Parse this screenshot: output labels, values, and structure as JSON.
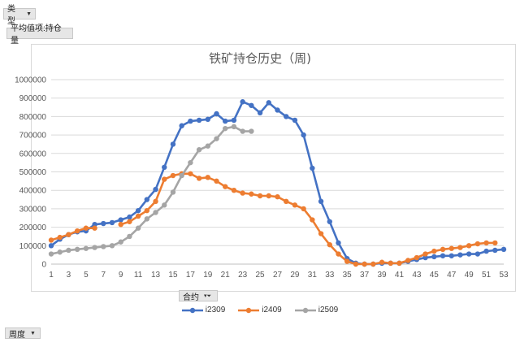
{
  "pivot": {
    "type_filter_label": "类型",
    "value_field_label": "平均值项:持仓量",
    "contract_filter_label": "合约",
    "week_filter_label": "周度"
  },
  "colors": {
    "i2309": "#4472c4",
    "i2409": "#ed7d31",
    "i2509": "#a5a5a5",
    "grid": "#d9d9d9",
    "axis": "#bfbfbf",
    "text": "#595959"
  },
  "chart_data": {
    "type": "line",
    "title": "铁矿持仓历史（周)",
    "ylim": [
      0,
      1000000
    ],
    "yticks": [
      0,
      100000,
      200000,
      300000,
      400000,
      500000,
      600000,
      700000,
      800000,
      900000,
      1000000
    ],
    "xticks": [
      1,
      3,
      5,
      7,
      9,
      11,
      13,
      15,
      17,
      19,
      21,
      23,
      25,
      27,
      29,
      31,
      33,
      35,
      37,
      39,
      41,
      43,
      45,
      47,
      49,
      51,
      53
    ],
    "x": [
      1,
      2,
      3,
      4,
      5,
      6,
      7,
      8,
      9,
      10,
      11,
      12,
      13,
      14,
      15,
      16,
      17,
      18,
      19,
      20,
      21,
      22,
      23,
      24,
      25,
      26,
      27,
      28,
      29,
      30,
      31,
      32,
      33,
      34,
      35,
      36,
      37,
      38,
      39,
      40,
      41,
      42,
      43,
      44,
      45,
      46,
      47,
      48,
      49,
      50,
      51,
      52,
      53
    ],
    "series": [
      {
        "name": "i2309",
        "color_key": "i2309",
        "values": [
          100000,
          135000,
          160000,
          175000,
          180000,
          215000,
          220000,
          225000,
          240000,
          255000,
          290000,
          350000,
          405000,
          525000,
          650000,
          750000,
          775000,
          780000,
          785000,
          815000,
          775000,
          780000,
          880000,
          860000,
          820000,
          875000,
          835000,
          800000,
          780000,
          700000,
          520000,
          340000,
          230000,
          115000,
          30000,
          5000,
          0,
          0,
          5000,
          5000,
          5000,
          15000,
          25000,
          35000,
          40000,
          45000,
          45000,
          50000,
          55000,
          55000,
          70000,
          75000,
          80000
        ]
      },
      {
        "name": "i2409",
        "color_key": "i2409",
        "values": [
          130000,
          145000,
          160000,
          180000,
          195000,
          195000,
          null,
          null,
          215000,
          230000,
          260000,
          290000,
          340000,
          460000,
          480000,
          490000,
          490000,
          465000,
          470000,
          450000,
          420000,
          400000,
          385000,
          380000,
          370000,
          370000,
          365000,
          340000,
          320000,
          300000,
          240000,
          165000,
          105000,
          55000,
          15000,
          0,
          0,
          0,
          10000,
          5000,
          5000,
          20000,
          35000,
          55000,
          70000,
          80000,
          85000,
          90000,
          100000,
          110000,
          115000,
          115000,
          null
        ]
      },
      {
        "name": "i2509",
        "color_key": "i2509",
        "values": [
          55000,
          65000,
          75000,
          80000,
          85000,
          90000,
          95000,
          100000,
          120000,
          150000,
          195000,
          245000,
          280000,
          320000,
          390000,
          480000,
          550000,
          620000,
          640000,
          680000,
          735000,
          745000,
          720000,
          720000,
          null,
          null,
          null,
          null,
          null,
          null,
          null,
          null,
          null,
          null,
          null,
          null,
          null,
          null,
          null,
          null,
          null,
          null,
          null,
          null,
          null,
          null,
          null,
          null,
          null,
          null,
          null,
          null,
          null
        ]
      }
    ]
  }
}
